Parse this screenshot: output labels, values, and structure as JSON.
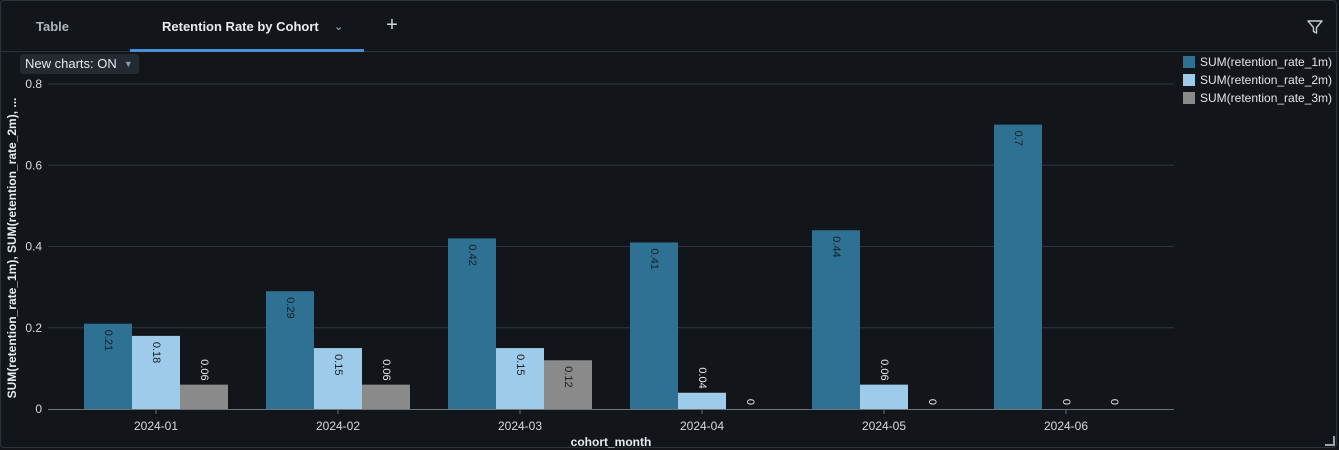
{
  "tabs": [
    {
      "label": "Table",
      "active": false
    },
    {
      "label": "Retention Rate by Cohort",
      "active": true
    }
  ],
  "add_tab_label": "+",
  "new_charts_toggle": {
    "label": "New charts: ON"
  },
  "colors": {
    "series_1": "#2e7192",
    "series_2": "#9ecbe9",
    "series_3": "#8a8a8a",
    "accent": "#4a8fd6"
  },
  "chart_data": {
    "type": "bar",
    "xlabel": "cohort_month",
    "ylabel": "SUM(retention_rate_1m), SUM(retention_rate_2m), ...",
    "categories": [
      "2024-01",
      "2024-02",
      "2024-03",
      "2024-04",
      "2024-05",
      "2024-06"
    ],
    "ylim": [
      0,
      0.8
    ],
    "yticks": [
      0,
      0.2,
      0.4,
      0.6,
      0.8
    ],
    "ytick_labels": [
      "0",
      "0.2",
      "0.4",
      "0.6",
      "0.8"
    ],
    "grid": true,
    "legend_position": "top-right",
    "series": [
      {
        "name": "SUM(retention_rate_1m)",
        "values": [
          0.21,
          0.29,
          0.42,
          0.41,
          0.44,
          0.7
        ],
        "labels": [
          "0.21",
          "0.29",
          "0.42",
          "0.41",
          "0.44",
          "0.7"
        ]
      },
      {
        "name": "SUM(retention_rate_2m)",
        "values": [
          0.18,
          0.15,
          0.15,
          0.04,
          0.06,
          0
        ],
        "labels": [
          "0.18",
          "0.15",
          "0.15",
          "0.04",
          "0.06",
          "0"
        ]
      },
      {
        "name": "SUM(retention_rate_3m)",
        "values": [
          0.06,
          0.06,
          0.12,
          0,
          0,
          0
        ],
        "labels": [
          "0.06",
          "0.06",
          "0.12",
          "0",
          "0",
          "0"
        ]
      }
    ]
  }
}
